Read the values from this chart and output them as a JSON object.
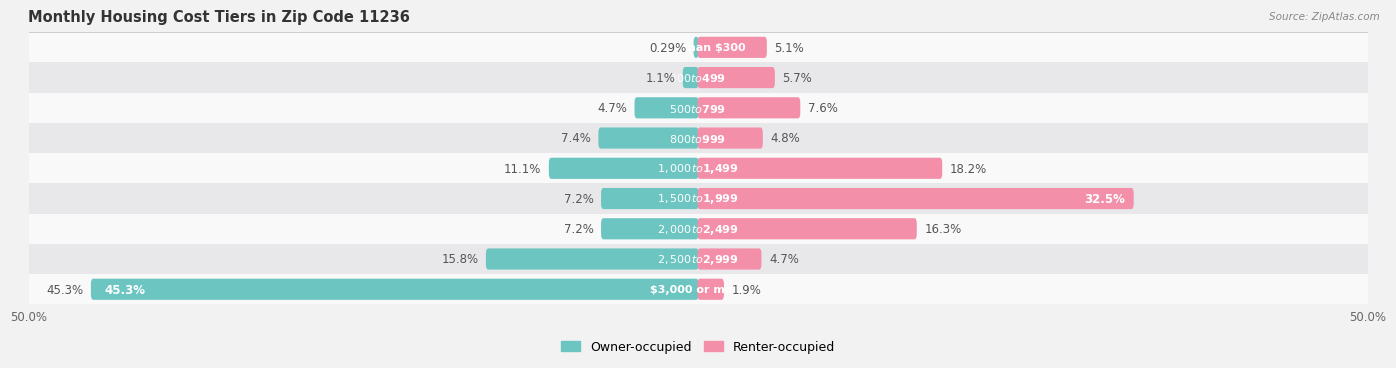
{
  "title": "Monthly Housing Cost Tiers in Zip Code 11236",
  "source": "Source: ZipAtlas.com",
  "categories": [
    "Less than $300",
    "$300 to $499",
    "$500 to $799",
    "$800 to $999",
    "$1,000 to $1,499",
    "$1,500 to $1,999",
    "$2,000 to $2,499",
    "$2,500 to $2,999",
    "$3,000 or more"
  ],
  "owner_values": [
    0.29,
    1.1,
    4.7,
    7.4,
    11.1,
    7.2,
    7.2,
    15.8,
    45.3
  ],
  "renter_values": [
    5.1,
    5.7,
    7.6,
    4.8,
    18.2,
    32.5,
    16.3,
    4.7,
    1.9
  ],
  "owner_color": "#6CC5C1",
  "renter_color": "#F48FAA",
  "background_color": "#f2f2f2",
  "row_light": "#f9f9f9",
  "row_dark": "#e8e8eb",
  "axis_limit": 50.0,
  "label_fontsize": 8.5,
  "title_fontsize": 10.5,
  "legend_fontsize": 9,
  "category_fontsize": 8.0,
  "white_text_threshold_renter": 25.0,
  "white_text_threshold_owner": 30.0
}
